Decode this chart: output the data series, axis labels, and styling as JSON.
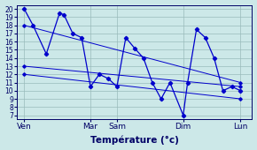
{
  "xlabel": "Température (°c)",
  "background_color": "#cce8e8",
  "line_color": "#0000cc",
  "grid_color": "#99bbbb",
  "yticks": [
    7,
    8,
    9,
    10,
    11,
    12,
    13,
    14,
    15,
    16,
    17,
    18,
    19,
    20
  ],
  "ylim": [
    6.5,
    20.5
  ],
  "xlim": [
    -0.3,
    26.3
  ],
  "x_tick_labels": [
    "Ven",
    "Mar",
    "Sam",
    "Dim",
    "Lun"
  ],
  "x_tick_positions": [
    0.5,
    8,
    11,
    18.5,
    25
  ],
  "series_main": {
    "x": [
      0.5,
      1.5,
      3,
      4.5,
      5,
      6,
      7,
      8,
      9,
      10,
      11,
      12,
      13,
      14,
      15,
      16,
      17,
      18.5,
      19,
      20,
      21,
      22,
      23,
      24,
      25
    ],
    "y": [
      20,
      18,
      14.5,
      19.5,
      19.3,
      17,
      16.5,
      10.5,
      12,
      11.5,
      10.5,
      16.5,
      15.2,
      14,
      11,
      9,
      11,
      7,
      11,
      17.5,
      16.5,
      14,
      10,
      10.5,
      10
    ]
  },
  "trend1": {
    "x": [
      0.5,
      25
    ],
    "y": [
      18,
      11
    ]
  },
  "trend2": {
    "x": [
      0.5,
      25
    ],
    "y": [
      13,
      10.5
    ]
  },
  "trend3": {
    "x": [
      0.5,
      25
    ],
    "y": [
      12,
      9
    ]
  }
}
